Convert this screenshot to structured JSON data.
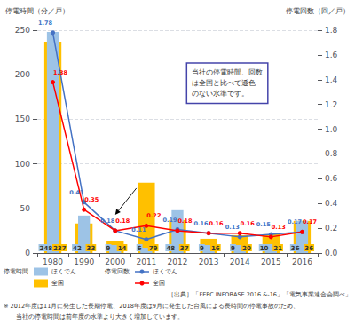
{
  "chart_data": {
    "type": "bar",
    "categories": [
      "1980",
      "1990",
      "2000",
      "2011",
      "2012",
      "2013",
      "2014",
      "2015",
      "2016"
    ],
    "y_label": "停電時間（分／戸）",
    "y2_label": "停電回数（回／戸）",
    "ylim": [
      0,
      250
    ],
    "yticks": [
      0,
      50,
      100,
      150,
      200,
      250
    ],
    "y2lim": [
      0,
      1.8
    ],
    "y2ticks": [
      {
        "value": 0,
        "label": "0.0"
      },
      0.2,
      0.4,
      0.6,
      0.8,
      {
        "value": 1.0,
        "label": "1.0"
      },
      1.2,
      1.4,
      1.6,
      1.8
    ],
    "grid": true,
    "data_labels": true,
    "legend": "bottom",
    "series": [
      {
        "name": "ほくでん",
        "legend_group": "停電時間",
        "type": "bar",
        "color": "#9DC3E6",
        "values": [
          248,
          42,
          9,
          6,
          48,
          9,
          9,
          10,
          36
        ]
      },
      {
        "name": "全国",
        "legend_group": "停電時間",
        "type": "bar",
        "color": "#FFC000",
        "values": [
          237,
          33,
          14,
          79,
          37,
          16,
          20,
          21,
          36
        ]
      },
      {
        "name": "ほくでん",
        "legend_group": "停電回数",
        "type": "line",
        "axis": "y2",
        "color": "#4472C4",
        "marker": "circle",
        "values": [
          1.78,
          0.41,
          0.18,
          0.11,
          0.19,
          0.16,
          0.13,
          0.15,
          0.17
        ]
      },
      {
        "name": "全国",
        "legend_group": "停電回数",
        "type": "line",
        "axis": "y2",
        "color": "#FF0000",
        "marker": "circle",
        "values": [
          1.38,
          0.35,
          0.18,
          0.22,
          0.18,
          0.16,
          0.16,
          0.13,
          0.17
        ]
      }
    ],
    "annotations": [
      {
        "text": "当社の停電時間、回数\nは全国と比べて遜色\nのない水準です。",
        "points_to": "2000"
      }
    ],
    "source": "［出典］「FEPC INFOBASE 2016 &-16」「電気事業連合会調べ」",
    "footnotes": [
      "※ 2012年度は11月に発生した長期停電、2018年度は9月に発生した台風による長時間の停電事故のため、",
      "当社の停電時間は前年度の水準より大きく増加しています。"
    ]
  }
}
